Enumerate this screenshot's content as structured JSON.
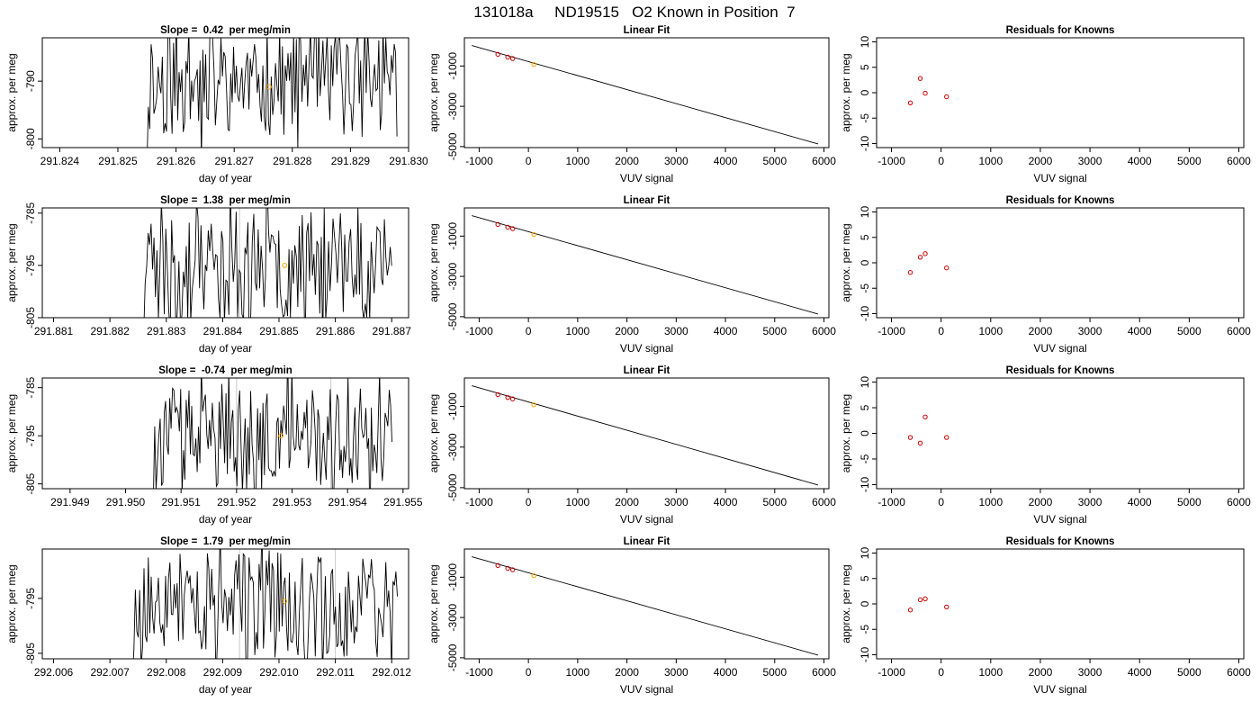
{
  "figure": {
    "title": "131018a     ND19515   O2 Known in Position  7"
  },
  "chart_data": [
    {
      "type": "line",
      "title": "Slope =  0.42  per meg/min",
      "xlabel": "day of year",
      "ylabel": "approx. per meg",
      "xlim": [
        291.8237,
        291.83
      ],
      "ylim": [
        -801.5,
        -782.5
      ],
      "xticks": [
        "291.824",
        "291.825",
        "291.826",
        "291.827",
        "291.828",
        "291.829",
        "291.830"
      ],
      "yticks": [
        "-790",
        "-800"
      ],
      "ytick_values": [
        -790,
        -800
      ],
      "vlines": [],
      "x_range": [
        291.8255,
        291.8298
      ],
      "mean": -790.2,
      "amplitude": 19,
      "seed": 11,
      "line_points": 180,
      "marker": {
        "x": 291.8276,
        "y": -791.0,
        "color": "#ffa500"
      }
    },
    {
      "type": "scatter",
      "title": "Linear Fit",
      "xlabel": "VUV signal",
      "ylabel": "approx. per meg",
      "xlim": [
        -1300,
        6100
      ],
      "ylim": [
        -5050,
        400
      ],
      "xticks": [
        "-1000",
        "0",
        "1000",
        "2000",
        "3000",
        "4000",
        "5000",
        "6000"
      ],
      "xtick_values": [
        -1000,
        0,
        1000,
        2000,
        3000,
        4000,
        5000,
        6000
      ],
      "yticks": [
        "-1000",
        "-3000",
        "-5000"
      ],
      "ytick_values": [
        -1000,
        -3000,
        -5000
      ],
      "fit_line": {
        "x": [
          -1150,
          5880
        ],
        "y": [
          20,
          -4870
        ]
      },
      "points": {
        "x": [
          -620,
          -420,
          -320,
          110
        ],
        "y": [
          -420,
          -560,
          -630,
          -920
        ],
        "colors": [
          "#cc0000",
          "#cc0000",
          "#cc0000",
          "#ffa500"
        ]
      }
    },
    {
      "type": "scatter",
      "title": "Residuals for Knowns",
      "xlabel": "VUV signal",
      "ylabel": "approx. per meg",
      "xlim": [
        -1300,
        6100
      ],
      "ylim": [
        -10.8,
        10.8
      ],
      "xticks": [
        "-1000",
        "0",
        "1000",
        "2000",
        "3000",
        "4000",
        "5000",
        "6000"
      ],
      "xtick_values": [
        -1000,
        0,
        1000,
        2000,
        3000,
        4000,
        5000,
        6000
      ],
      "yticks": [
        "10",
        "5",
        "0",
        "-5",
        "-10"
      ],
      "ytick_values": [
        10,
        5,
        0,
        -5,
        -10
      ],
      "points": {
        "x": [
          -620,
          -420,
          -320,
          110
        ],
        "y": [
          -2.0,
          2.8,
          -0.1,
          -0.8
        ]
      }
    },
    {
      "type": "line",
      "title": "Slope =  1.38  per meg/min",
      "xlabel": "day of year",
      "ylabel": "approx. per meg",
      "xlim": [
        291.8808,
        291.8873
      ],
      "ylim": [
        -805,
        -784
      ],
      "xticks": [
        "291.881",
        "291.882",
        "291.883",
        "291.884",
        "291.885",
        "291.886",
        "291.887"
      ],
      "yticks": [
        "-785",
        "-795",
        "-805"
      ],
      "ytick_values": [
        -785,
        -795,
        -805
      ],
      "vlines": [
        291.8843
      ],
      "x_range": [
        291.8826,
        291.887
      ],
      "mean": -795.5,
      "amplitude": 21,
      "seed": 23,
      "line_points": 170,
      "marker": {
        "x": 291.8851,
        "y": -795.0,
        "color": "#ffa500"
      }
    },
    {
      "type": "scatter",
      "title": "Linear Fit",
      "xlabel": "VUV signal",
      "ylabel": "approx. per meg",
      "xlim": [
        -1300,
        6100
      ],
      "ylim": [
        -5050,
        400
      ],
      "xticks": [
        "-1000",
        "0",
        "1000",
        "2000",
        "3000",
        "4000",
        "5000",
        "6000"
      ],
      "xtick_values": [
        -1000,
        0,
        1000,
        2000,
        3000,
        4000,
        5000,
        6000
      ],
      "yticks": [
        "-1000",
        "-3000",
        "-5000"
      ],
      "ytick_values": [
        -1000,
        -3000,
        -5000
      ],
      "fit_line": {
        "x": [
          -1150,
          5880
        ],
        "y": [
          20,
          -4870
        ]
      },
      "points": {
        "x": [
          -620,
          -420,
          -320,
          110
        ],
        "y": [
          -420,
          -560,
          -630,
          -920
        ],
        "colors": [
          "#cc0000",
          "#cc0000",
          "#cc0000",
          "#ffa500"
        ]
      }
    },
    {
      "type": "scatter",
      "title": "Residuals for Knowns",
      "xlabel": "VUV signal",
      "ylabel": "approx. per meg",
      "xlim": [
        -1300,
        6100
      ],
      "ylim": [
        -10.8,
        10.8
      ],
      "xticks": [
        "-1000",
        "0",
        "1000",
        "2000",
        "3000",
        "4000",
        "5000",
        "6000"
      ],
      "xtick_values": [
        -1000,
        0,
        1000,
        2000,
        3000,
        4000,
        5000,
        6000
      ],
      "yticks": [
        "10",
        "5",
        "0",
        "-5",
        "-10"
      ],
      "ytick_values": [
        10,
        5,
        0,
        -5,
        -10
      ],
      "points": {
        "x": [
          -620,
          -420,
          -320,
          110
        ],
        "y": [
          -1.9,
          1.1,
          1.8,
          -1.0
        ]
      }
    },
    {
      "type": "line",
      "title": "Slope =  -0.74  per meg/min",
      "xlabel": "day of year",
      "ylabel": "approx. per meg",
      "xlim": [
        291.9485,
        291.9551
      ],
      "ylim": [
        -806,
        -783
      ],
      "xticks": [
        "291.949",
        "291.950",
        "291.951",
        "291.952",
        "291.953",
        "291.954",
        "291.955"
      ],
      "yticks": [
        "-785",
        "-795",
        "-805"
      ],
      "ytick_values": [
        -785,
        -795,
        -805
      ],
      "vlines": [
        291.952,
        291.9537
      ],
      "x_range": [
        291.9505,
        291.9548
      ],
      "mean": -796.0,
      "amplitude": 22,
      "seed": 37,
      "line_points": 175,
      "marker": {
        "x": 291.9528,
        "y": -795.0,
        "color": "#ffa500"
      }
    },
    {
      "type": "scatter",
      "title": "Linear Fit",
      "xlabel": "VUV signal",
      "ylabel": "approx. per meg",
      "xlim": [
        -1300,
        6100
      ],
      "ylim": [
        -5050,
        400
      ],
      "xticks": [
        "-1000",
        "0",
        "1000",
        "2000",
        "3000",
        "4000",
        "5000",
        "6000"
      ],
      "xtick_values": [
        -1000,
        0,
        1000,
        2000,
        3000,
        4000,
        5000,
        6000
      ],
      "yticks": [
        "-1000",
        "-3000",
        "-5000"
      ],
      "ytick_values": [
        -1000,
        -3000,
        -5000
      ],
      "fit_line": {
        "x": [
          -1150,
          5880
        ],
        "y": [
          20,
          -4870
        ]
      },
      "points": {
        "x": [
          -620,
          -420,
          -320,
          110
        ],
        "y": [
          -420,
          -560,
          -630,
          -920
        ],
        "colors": [
          "#cc0000",
          "#cc0000",
          "#cc0000",
          "#ffa500"
        ]
      }
    },
    {
      "type": "scatter",
      "title": "Residuals for Knowns",
      "xlabel": "VUV signal",
      "ylabel": "approx. per meg",
      "xlim": [
        -1300,
        6100
      ],
      "ylim": [
        -10.8,
        10.8
      ],
      "xticks": [
        "-1000",
        "0",
        "1000",
        "2000",
        "3000",
        "4000",
        "5000",
        "6000"
      ],
      "xtick_values": [
        -1000,
        0,
        1000,
        2000,
        3000,
        4000,
        5000,
        6000
      ],
      "yticks": [
        "10",
        "5",
        "0",
        "-5",
        "-10"
      ],
      "ytick_values": [
        10,
        5,
        0,
        -5,
        -10
      ],
      "points": {
        "x": [
          -620,
          -420,
          -320,
          110
        ],
        "y": [
          -0.8,
          -1.9,
          3.2,
          -0.8
        ]
      }
    },
    {
      "type": "line",
      "title": "Slope =  1.79  per meg/min",
      "xlabel": "day of year",
      "ylabel": "approx. per meg",
      "xlim": [
        292.0058,
        292.0123
      ],
      "ylim": [
        -806,
        -786
      ],
      "xticks": [
        "292.006",
        "292.007",
        "292.008",
        "292.009",
        "292.010",
        "292.011",
        "292.012"
      ],
      "yticks": [
        "-795",
        "-805"
      ],
      "ytick_values": [
        -795,
        -805
      ],
      "vlines": [
        292.0093,
        292.011
      ],
      "x_range": [
        292.0074,
        292.0121
      ],
      "mean": -796.0,
      "amplitude": 20,
      "seed": 53,
      "line_points": 185,
      "marker": {
        "x": 292.0101,
        "y": -795.5,
        "color": "#ffa500"
      }
    },
    {
      "type": "scatter",
      "title": "Linear Fit",
      "xlabel": "VUV signal",
      "ylabel": "approx. per meg",
      "xlim": [
        -1300,
        6100
      ],
      "ylim": [
        -5050,
        400
      ],
      "xticks": [
        "-1000",
        "0",
        "1000",
        "2000",
        "3000",
        "4000",
        "5000",
        "6000"
      ],
      "xtick_values": [
        -1000,
        0,
        1000,
        2000,
        3000,
        4000,
        5000,
        6000
      ],
      "yticks": [
        "-1000",
        "-3000",
        "-5000"
      ],
      "ytick_values": [
        -1000,
        -3000,
        -5000
      ],
      "fit_line": {
        "x": [
          -1150,
          5880
        ],
        "y": [
          20,
          -4870
        ]
      },
      "points": {
        "x": [
          -620,
          -420,
          -320,
          110
        ],
        "y": [
          -420,
          -560,
          -630,
          -920
        ],
        "colors": [
          "#cc0000",
          "#cc0000",
          "#cc0000",
          "#ffa500"
        ]
      }
    },
    {
      "type": "scatter",
      "title": "Residuals for Knowns",
      "xlabel": "VUV signal",
      "ylabel": "approx. per meg",
      "xlim": [
        -1300,
        6100
      ],
      "ylim": [
        -10.8,
        10.8
      ],
      "xticks": [
        "-1000",
        "0",
        "1000",
        "2000",
        "3000",
        "4000",
        "5000",
        "6000"
      ],
      "xtick_values": [
        -1000,
        0,
        1000,
        2000,
        3000,
        4000,
        5000,
        6000
      ],
      "yticks": [
        "10",
        "5",
        "0",
        "-5",
        "-10"
      ],
      "ytick_values": [
        10,
        5,
        0,
        -5,
        -10
      ],
      "points": {
        "x": [
          -620,
          -420,
          -320,
          110
        ],
        "y": [
          -1.2,
          0.8,
          1.0,
          -0.6
        ]
      }
    }
  ]
}
